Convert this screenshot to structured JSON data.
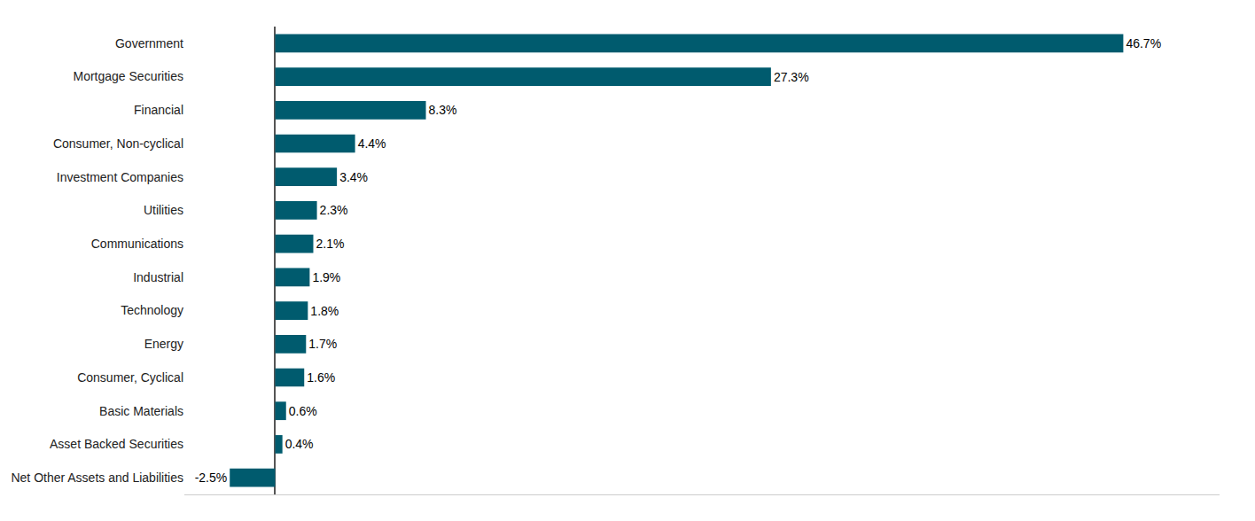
{
  "chart_data": {
    "type": "bar",
    "orientation": "horizontal",
    "categories": [
      "Government",
      "Mortgage Securities",
      "Financial",
      "Consumer, Non-cyclical",
      "Investment Companies",
      "Utilities",
      "Communications",
      "Industrial",
      "Technology",
      "Energy",
      "Consumer, Cyclical",
      "Basic Materials",
      "Asset Backed Securities",
      "Net Other Assets and Liabilities"
    ],
    "values": [
      46.7,
      27.3,
      8.3,
      4.4,
      3.4,
      2.3,
      2.1,
      1.9,
      1.8,
      1.7,
      1.6,
      0.6,
      0.4,
      -2.5
    ],
    "value_labels": [
      "46.7%",
      "27.3%",
      "8.3%",
      "4.4%",
      "3.4%",
      "2.3%",
      "2.1%",
      "1.9%",
      "1.8%",
      "1.7%",
      "1.6%",
      "0.6%",
      "0.4%",
      "-2.5%"
    ],
    "data_labels": true,
    "color": "#005b6e",
    "xlim": [
      -5,
      52
    ],
    "grid": false,
    "tick_labels": "y"
  }
}
